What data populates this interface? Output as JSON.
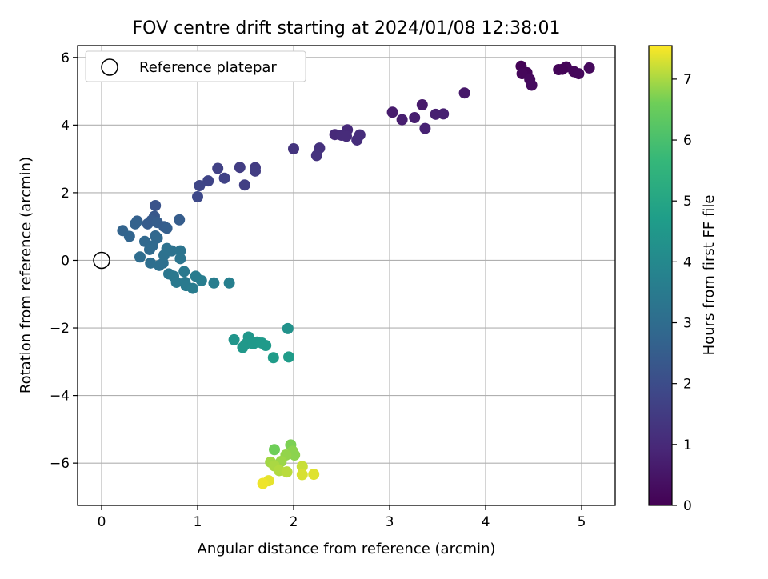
{
  "chart_data": {
    "type": "scatter",
    "title": "FOV centre drift starting at 2024/01/08 12:38:01",
    "xlabel": "Angular distance from reference (arcmin)",
    "ylabel": "Rotation from reference (arcmin)",
    "xlim": [
      -0.25,
      5.35
    ],
    "ylim": [
      -7.25,
      6.35
    ],
    "xticks": [
      0,
      1,
      2,
      3,
      4,
      5
    ],
    "xtick_labels": [
      "0",
      "1",
      "2",
      "3",
      "4",
      "5"
    ],
    "yticks": [
      -6,
      -4,
      -2,
      0,
      2,
      4,
      6
    ],
    "ytick_labels": [
      "−6",
      "−4",
      "−2",
      "0",
      "2",
      "4",
      "6"
    ],
    "grid": true,
    "legend": {
      "label": "Reference platepar",
      "placement": "top-left"
    },
    "reference_point": {
      "x": 0,
      "y": 0
    },
    "colorbar": {
      "label": "Hours from first FF file",
      "range": [
        0,
        7.55
      ],
      "ticks": [
        0,
        1,
        2,
        3,
        4,
        5,
        6,
        7
      ],
      "tick_labels": [
        "0",
        "1",
        "2",
        "3",
        "4",
        "5",
        "6",
        "7"
      ],
      "colormap": "viridis"
    },
    "points": [
      {
        "x": 4.37,
        "y": 5.74,
        "h": 0.05
      },
      {
        "x": 4.43,
        "y": 5.55,
        "h": 0.1
      },
      {
        "x": 4.38,
        "y": 5.52,
        "h": 0.15
      },
      {
        "x": 4.46,
        "y": 5.35,
        "h": 0.2
      },
      {
        "x": 4.48,
        "y": 5.18,
        "h": 0.25
      },
      {
        "x": 4.76,
        "y": 5.64,
        "h": 0.1
      },
      {
        "x": 4.84,
        "y": 5.72,
        "h": 0.12
      },
      {
        "x": 4.92,
        "y": 5.58,
        "h": 0.15
      },
      {
        "x": 4.97,
        "y": 5.52,
        "h": 0.18
      },
      {
        "x": 5.08,
        "y": 5.69,
        "h": 0.2
      },
      {
        "x": 4.8,
        "y": 5.65,
        "h": 0.08
      },
      {
        "x": 3.78,
        "y": 4.95,
        "h": 0.55
      },
      {
        "x": 3.34,
        "y": 4.6,
        "h": 0.6
      },
      {
        "x": 3.03,
        "y": 4.38,
        "h": 0.65
      },
      {
        "x": 3.13,
        "y": 4.16,
        "h": 0.7
      },
      {
        "x": 3.26,
        "y": 4.22,
        "h": 0.7
      },
      {
        "x": 3.48,
        "y": 4.32,
        "h": 0.75
      },
      {
        "x": 3.56,
        "y": 4.33,
        "h": 0.75
      },
      {
        "x": 3.37,
        "y": 3.9,
        "h": 0.8
      },
      {
        "x": 2.56,
        "y": 3.86,
        "h": 1.0
      },
      {
        "x": 2.43,
        "y": 3.72,
        "h": 1.0
      },
      {
        "x": 2.5,
        "y": 3.7,
        "h": 1.05
      },
      {
        "x": 2.55,
        "y": 3.67,
        "h": 1.05
      },
      {
        "x": 2.69,
        "y": 3.71,
        "h": 1.1
      },
      {
        "x": 2.66,
        "y": 3.56,
        "h": 1.1
      },
      {
        "x": 2.27,
        "y": 3.32,
        "h": 1.2
      },
      {
        "x": 2.24,
        "y": 3.1,
        "h": 1.25
      },
      {
        "x": 2.0,
        "y": 3.3,
        "h": 1.3
      },
      {
        "x": 1.6,
        "y": 2.74,
        "h": 1.5
      },
      {
        "x": 1.6,
        "y": 2.64,
        "h": 1.55
      },
      {
        "x": 1.44,
        "y": 2.75,
        "h": 1.55
      },
      {
        "x": 1.49,
        "y": 2.23,
        "h": 1.6
      },
      {
        "x": 1.21,
        "y": 2.72,
        "h": 1.65
      },
      {
        "x": 1.28,
        "y": 2.43,
        "h": 1.7
      },
      {
        "x": 1.11,
        "y": 2.35,
        "h": 1.75
      },
      {
        "x": 1.02,
        "y": 2.21,
        "h": 1.8
      },
      {
        "x": 1.0,
        "y": 1.88,
        "h": 1.9
      },
      {
        "x": 0.56,
        "y": 1.62,
        "h": 2.2
      },
      {
        "x": 0.55,
        "y": 1.3,
        "h": 2.3
      },
      {
        "x": 0.52,
        "y": 1.18,
        "h": 2.4
      },
      {
        "x": 0.48,
        "y": 1.08,
        "h": 2.45
      },
      {
        "x": 0.58,
        "y": 1.12,
        "h": 2.5
      },
      {
        "x": 0.65,
        "y": 1.0,
        "h": 2.5
      },
      {
        "x": 0.68,
        "y": 0.95,
        "h": 2.55
      },
      {
        "x": 0.81,
        "y": 1.2,
        "h": 2.5
      },
      {
        "x": 0.37,
        "y": 1.16,
        "h": 2.6
      },
      {
        "x": 0.35,
        "y": 1.08,
        "h": 2.65
      },
      {
        "x": 0.22,
        "y": 0.88,
        "h": 2.7
      },
      {
        "x": 0.29,
        "y": 0.71,
        "h": 2.75
      },
      {
        "x": 0.56,
        "y": 0.72,
        "h": 2.8
      },
      {
        "x": 0.58,
        "y": 0.66,
        "h": 2.85
      },
      {
        "x": 0.45,
        "y": 0.56,
        "h": 2.85
      },
      {
        "x": 0.53,
        "y": 0.43,
        "h": 2.9
      },
      {
        "x": 0.5,
        "y": 0.32,
        "h": 2.95
      },
      {
        "x": 0.4,
        "y": 0.1,
        "h": 3.0
      },
      {
        "x": 0.51,
        "y": -0.08,
        "h": 3.05
      },
      {
        "x": 0.6,
        "y": -0.15,
        "h": 3.1
      },
      {
        "x": 0.64,
        "y": -0.08,
        "h": 3.1
      },
      {
        "x": 0.65,
        "y": 0.15,
        "h": 3.15
      },
      {
        "x": 0.68,
        "y": 0.35,
        "h": 3.2
      },
      {
        "x": 0.73,
        "y": 0.28,
        "h": 3.2
      },
      {
        "x": 0.82,
        "y": 0.28,
        "h": 3.25
      },
      {
        "x": 0.82,
        "y": 0.05,
        "h": 3.3
      },
      {
        "x": 0.7,
        "y": -0.4,
        "h": 3.35
      },
      {
        "x": 0.75,
        "y": -0.47,
        "h": 3.4
      },
      {
        "x": 0.78,
        "y": -0.65,
        "h": 3.45
      },
      {
        "x": 0.86,
        "y": -0.33,
        "h": 3.45
      },
      {
        "x": 0.87,
        "y": -0.65,
        "h": 3.5
      },
      {
        "x": 0.88,
        "y": -0.75,
        "h": 3.5
      },
      {
        "x": 0.95,
        "y": -0.83,
        "h": 3.55
      },
      {
        "x": 0.98,
        "y": -0.47,
        "h": 3.55
      },
      {
        "x": 1.04,
        "y": -0.6,
        "h": 3.6
      },
      {
        "x": 1.17,
        "y": -0.67,
        "h": 3.6
      },
      {
        "x": 1.33,
        "y": -0.67,
        "h": 3.65
      },
      {
        "x": 1.94,
        "y": -2.02,
        "h": 4.3
      },
      {
        "x": 1.38,
        "y": -2.35,
        "h": 4.4
      },
      {
        "x": 1.53,
        "y": -2.27,
        "h": 4.45
      },
      {
        "x": 1.5,
        "y": -2.48,
        "h": 4.5
      },
      {
        "x": 1.47,
        "y": -2.58,
        "h": 4.5
      },
      {
        "x": 1.58,
        "y": -2.47,
        "h": 4.55
      },
      {
        "x": 1.62,
        "y": -2.42,
        "h": 4.55
      },
      {
        "x": 1.67,
        "y": -2.45,
        "h": 4.6
      },
      {
        "x": 1.71,
        "y": -2.52,
        "h": 4.6
      },
      {
        "x": 1.79,
        "y": -2.88,
        "h": 4.65
      },
      {
        "x": 1.95,
        "y": -2.86,
        "h": 4.65
      },
      {
        "x": 1.8,
        "y": -5.6,
        "h": 6.6
      },
      {
        "x": 1.97,
        "y": -5.46,
        "h": 6.7
      },
      {
        "x": 1.99,
        "y": -5.65,
        "h": 6.8
      },
      {
        "x": 2.01,
        "y": -5.76,
        "h": 6.8
      },
      {
        "x": 1.92,
        "y": -5.76,
        "h": 6.85
      },
      {
        "x": 1.87,
        "y": -5.95,
        "h": 6.9
      },
      {
        "x": 1.76,
        "y": -5.97,
        "h": 6.95
      },
      {
        "x": 1.8,
        "y": -6.08,
        "h": 7.0
      },
      {
        "x": 1.85,
        "y": -6.22,
        "h": 7.05
      },
      {
        "x": 1.93,
        "y": -6.26,
        "h": 7.1
      },
      {
        "x": 2.09,
        "y": -6.1,
        "h": 7.2
      },
      {
        "x": 2.09,
        "y": -6.34,
        "h": 7.3
      },
      {
        "x": 2.21,
        "y": -6.33,
        "h": 7.35
      },
      {
        "x": 1.74,
        "y": -6.52,
        "h": 7.4
      },
      {
        "x": 1.68,
        "y": -6.6,
        "h": 7.45
      }
    ]
  }
}
